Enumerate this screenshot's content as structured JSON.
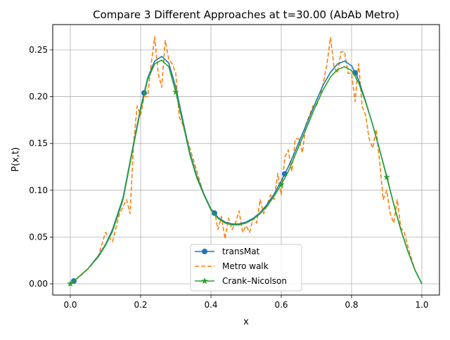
{
  "chart_data": {
    "type": "line",
    "title": "Compare 3 Different Approaches at t=30.00 (AbAb Metro)",
    "xlabel": "x",
    "ylabel": "P(x,t)",
    "xlim": [
      -0.05,
      1.05
    ],
    "ylim": [
      -0.012,
      0.277
    ],
    "xticks": [
      0.0,
      0.2,
      0.4,
      0.6,
      0.8,
      1.0
    ],
    "xtick_labels": [
      "0.0",
      "0.2",
      "0.4",
      "0.6",
      "0.8",
      "1.0"
    ],
    "yticks": [
      0.0,
      0.05,
      0.1,
      0.15,
      0.2,
      0.25
    ],
    "ytick_labels": [
      "0.00",
      "0.05",
      "0.10",
      "0.15",
      "0.20",
      "0.25"
    ],
    "grid": true,
    "legend_position": "lower-center",
    "series": [
      {
        "name": "transMat",
        "color": "#1f77b4",
        "style": "solid",
        "marker": "circle",
        "marker_x": [
          0.01,
          0.21,
          0.41,
          0.61,
          0.81
        ],
        "x": [
          0.0,
          0.02,
          0.05,
          0.08,
          0.1,
          0.12,
          0.15,
          0.18,
          0.2,
          0.22,
          0.24,
          0.26,
          0.28,
          0.3,
          0.32,
          0.34,
          0.36,
          0.38,
          0.4,
          0.42,
          0.44,
          0.46,
          0.48,
          0.5,
          0.52,
          0.54,
          0.56,
          0.58,
          0.6,
          0.62,
          0.64,
          0.66,
          0.68,
          0.7,
          0.72,
          0.74,
          0.76,
          0.78,
          0.8,
          0.82,
          0.84,
          0.86,
          0.88,
          0.9,
          0.92,
          0.94,
          0.96,
          0.98,
          1.0
        ],
        "y": [
          0.0,
          0.006,
          0.016,
          0.03,
          0.042,
          0.058,
          0.092,
          0.15,
          0.188,
          0.22,
          0.238,
          0.243,
          0.236,
          0.21,
          0.175,
          0.14,
          0.115,
          0.096,
          0.08,
          0.071,
          0.066,
          0.064,
          0.064,
          0.066,
          0.07,
          0.076,
          0.085,
          0.096,
          0.11,
          0.125,
          0.142,
          0.16,
          0.178,
          0.196,
          0.213,
          0.226,
          0.235,
          0.238,
          0.233,
          0.218,
          0.195,
          0.17,
          0.143,
          0.115,
          0.085,
          0.058,
          0.035,
          0.015,
          0.0
        ]
      },
      {
        "name": "Metro walk",
        "color": "#ff7f0e",
        "style": "dashed",
        "marker": "none",
        "x": [
          0.0,
          0.02,
          0.04,
          0.06,
          0.08,
          0.1,
          0.12,
          0.14,
          0.16,
          0.17,
          0.18,
          0.19,
          0.2,
          0.21,
          0.22,
          0.23,
          0.24,
          0.25,
          0.26,
          0.27,
          0.28,
          0.29,
          0.3,
          0.31,
          0.32,
          0.34,
          0.36,
          0.38,
          0.4,
          0.41,
          0.42,
          0.43,
          0.44,
          0.45,
          0.46,
          0.47,
          0.48,
          0.49,
          0.5,
          0.51,
          0.52,
          0.53,
          0.54,
          0.55,
          0.56,
          0.57,
          0.58,
          0.59,
          0.6,
          0.61,
          0.62,
          0.63,
          0.64,
          0.65,
          0.66,
          0.67,
          0.68,
          0.69,
          0.7,
          0.71,
          0.72,
          0.73,
          0.74,
          0.75,
          0.76,
          0.77,
          0.78,
          0.79,
          0.8,
          0.81,
          0.82,
          0.83,
          0.84,
          0.85,
          0.86,
          0.87,
          0.88,
          0.89,
          0.9,
          0.91,
          0.92,
          0.93,
          0.94,
          0.95,
          0.96,
          0.98,
          1.0
        ],
        "y": [
          0.0,
          0.006,
          0.012,
          0.02,
          0.03,
          0.055,
          0.045,
          0.075,
          0.09,
          0.075,
          0.15,
          0.19,
          0.18,
          0.2,
          0.2,
          0.235,
          0.264,
          0.225,
          0.21,
          0.26,
          0.24,
          0.235,
          0.225,
          0.178,
          0.17,
          0.145,
          0.12,
          0.095,
          0.08,
          0.078,
          0.058,
          0.072,
          0.048,
          0.07,
          0.058,
          0.065,
          0.078,
          0.055,
          0.062,
          0.055,
          0.07,
          0.065,
          0.09,
          0.075,
          0.085,
          0.095,
          0.09,
          0.118,
          0.095,
          0.135,
          0.143,
          0.12,
          0.155,
          0.155,
          0.14,
          0.17,
          0.18,
          0.19,
          0.19,
          0.2,
          0.215,
          0.235,
          0.263,
          0.232,
          0.225,
          0.248,
          0.248,
          0.225,
          0.225,
          0.195,
          0.235,
          0.19,
          0.18,
          0.155,
          0.145,
          0.165,
          0.13,
          0.09,
          0.1,
          0.075,
          0.065,
          0.09,
          0.06,
          0.055,
          0.04,
          0.015,
          0.0
        ]
      },
      {
        "name": "Crank–Nicolson",
        "color": "#2ca02c",
        "style": "solid",
        "marker": "star",
        "marker_x": [
          0.0,
          0.3,
          0.6,
          0.9
        ],
        "x": [
          0.0,
          0.02,
          0.05,
          0.08,
          0.1,
          0.12,
          0.15,
          0.18,
          0.2,
          0.22,
          0.24,
          0.26,
          0.28,
          0.3,
          0.32,
          0.34,
          0.36,
          0.38,
          0.4,
          0.42,
          0.44,
          0.46,
          0.48,
          0.5,
          0.52,
          0.54,
          0.56,
          0.58,
          0.6,
          0.62,
          0.64,
          0.66,
          0.68,
          0.7,
          0.72,
          0.74,
          0.76,
          0.78,
          0.8,
          0.82,
          0.84,
          0.86,
          0.88,
          0.9,
          0.92,
          0.94,
          0.96,
          0.98,
          1.0
        ],
        "y": [
          0.0,
          0.006,
          0.016,
          0.029,
          0.041,
          0.056,
          0.09,
          0.148,
          0.186,
          0.218,
          0.235,
          0.239,
          0.232,
          0.205,
          0.172,
          0.138,
          0.113,
          0.095,
          0.079,
          0.07,
          0.065,
          0.063,
          0.063,
          0.065,
          0.069,
          0.075,
          0.083,
          0.094,
          0.106,
          0.12,
          0.138,
          0.156,
          0.174,
          0.192,
          0.208,
          0.221,
          0.229,
          0.232,
          0.228,
          0.215,
          0.194,
          0.17,
          0.143,
          0.114,
          0.085,
          0.058,
          0.035,
          0.015,
          0.0
        ]
      }
    ]
  }
}
